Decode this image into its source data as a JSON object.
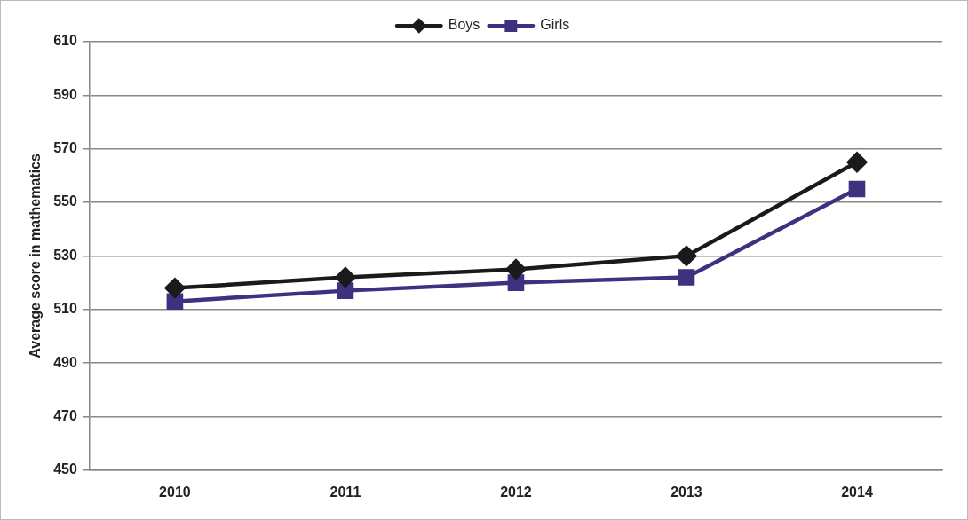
{
  "chart_data": {
    "type": "line",
    "ylabel": "Average score in mathematics",
    "categories": [
      "2010",
      "2011",
      "2012",
      "2013",
      "2014"
    ],
    "series": [
      {
        "name": "Boys",
        "color": "#1a1a1a",
        "marker": "diamond",
        "values": [
          518,
          522,
          525,
          530,
          565
        ]
      },
      {
        "name": "Girls",
        "color": "#3d3180",
        "marker": "square",
        "values": [
          513,
          517,
          520,
          522,
          555
        ]
      }
    ],
    "ylim": [
      450,
      610
    ],
    "yticks": [
      450,
      470,
      490,
      510,
      530,
      550,
      570,
      590,
      610
    ],
    "grid": "y",
    "legend": "top",
    "line_style": "solid"
  }
}
